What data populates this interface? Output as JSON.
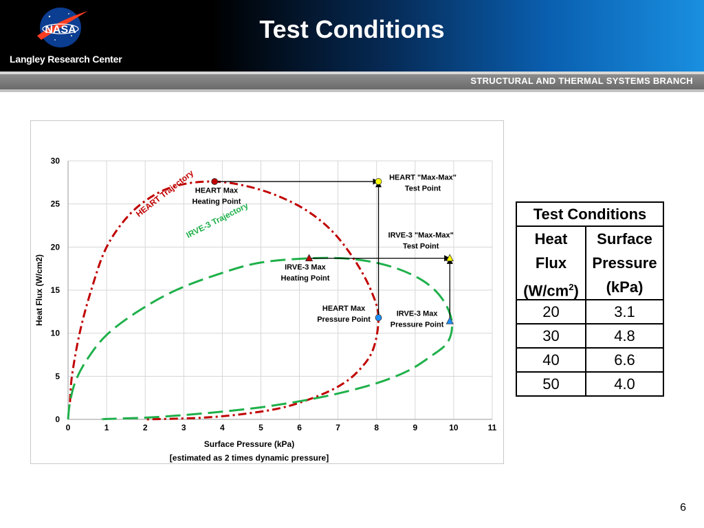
{
  "header": {
    "logo_text": "NASA",
    "center_name": "Langley Research Center",
    "title": "Test Conditions",
    "branch": "STRUCTURAL AND THERMAL SYSTEMS BRANCH"
  },
  "colors": {
    "heart": "#c00000",
    "irve": "#1eb04a",
    "banner": "#000000",
    "accent": "#1a8fe0"
  },
  "chart_data": {
    "type": "line",
    "xlabel": "Surface Pressure (kPa)",
    "xlabel2": "[estimated as 2 times dynamic pressure]",
    "ylabel": "Heat Flux (W/cm2)",
    "xlim": [
      0,
      11
    ],
    "ylim": [
      0,
      30
    ],
    "xticks": [
      0,
      1,
      2,
      3,
      4,
      5,
      6,
      7,
      8,
      9,
      10,
      11
    ],
    "yticks": [
      0,
      5,
      10,
      15,
      20,
      25,
      30
    ],
    "grid": true,
    "series": [
      {
        "name": "HEART Trajectory",
        "color": "#c00000",
        "style": "dash-dot",
        "points": [
          [
            0.05,
            2
          ],
          [
            0.1,
            5
          ],
          [
            0.3,
            10
          ],
          [
            0.6,
            15
          ],
          [
            1,
            20
          ],
          [
            1.6,
            23.8
          ],
          [
            2.3,
            26.2
          ],
          [
            3,
            27.3
          ],
          [
            3.8,
            27.6
          ],
          [
            4.6,
            27.1
          ],
          [
            5.4,
            26
          ],
          [
            6.2,
            24.2
          ],
          [
            6.9,
            21.6
          ],
          [
            7.5,
            18
          ],
          [
            7.9,
            14.5
          ],
          [
            8.05,
            11.7
          ],
          [
            7.9,
            8
          ],
          [
            7.5,
            5.5
          ],
          [
            7,
            3.8
          ],
          [
            6.3,
            2.4
          ],
          [
            5.5,
            1.3
          ],
          [
            4.5,
            0.6
          ],
          [
            3.5,
            0.2
          ],
          [
            2.5,
            0.05
          ],
          [
            2,
            0
          ]
        ]
      },
      {
        "name": "IRVE-3 Trajectory",
        "color": "#1eb04a",
        "style": "dash",
        "points": [
          [
            0,
            0
          ],
          [
            0.05,
            2
          ],
          [
            0.2,
            4.5
          ],
          [
            0.5,
            7
          ],
          [
            1,
            9.8
          ],
          [
            1.8,
            12.5
          ],
          [
            2.8,
            15
          ],
          [
            4,
            17
          ],
          [
            5,
            18.2
          ],
          [
            6.3,
            18.7
          ],
          [
            7.4,
            18.6
          ],
          [
            8.4,
            17.7
          ],
          [
            9.2,
            16.1
          ],
          [
            9.7,
            14
          ],
          [
            9.95,
            11.4
          ],
          [
            9.85,
            9
          ],
          [
            9.4,
            7.3
          ],
          [
            8.8,
            5.6
          ],
          [
            8,
            4.2
          ],
          [
            7,
            3
          ],
          [
            6,
            2.1
          ],
          [
            5,
            1.4
          ],
          [
            4,
            0.9
          ],
          [
            3,
            0.5
          ],
          [
            2,
            0.2
          ],
          [
            1,
            0.05
          ],
          [
            0.9,
            0
          ]
        ]
      }
    ],
    "markers": [
      {
        "label": "HEART  Max Heating Point",
        "x": 3.8,
        "y": 27.6,
        "shape": "circle",
        "color": "#c00000"
      },
      {
        "label": "HEART  \"Max-Max\" Test Point",
        "x": 8.05,
        "y": 27.6,
        "shape": "circle",
        "color": "#ffff00"
      },
      {
        "label": "HEART  Max Pressure Point",
        "x": 8.05,
        "y": 11.8,
        "shape": "circle",
        "color": "#1e90ff"
      },
      {
        "label": "IRVE-3  Max Heating Point",
        "x": 6.25,
        "y": 18.7,
        "shape": "triangle",
        "color": "#c00000"
      },
      {
        "label": "IRVE-3 \"Max-Max\" Test Point",
        "x": 9.9,
        "y": 18.7,
        "shape": "triangle",
        "color": "#ffff00"
      },
      {
        "label": "IRVE-3  Max Pressure Point",
        "x": 9.9,
        "y": 11.4,
        "shape": "triangle",
        "color": "#1e90ff"
      }
    ],
    "arrows": [
      {
        "from": [
          3.8,
          27.6
        ],
        "to": [
          8.05,
          27.6
        ]
      },
      {
        "from": [
          8.05,
          11.8
        ],
        "to": [
          8.05,
          27.6
        ]
      },
      {
        "from": [
          6.25,
          18.7
        ],
        "to": [
          9.9,
          18.7
        ]
      },
      {
        "from": [
          9.9,
          11.4
        ],
        "to": [
          9.9,
          18.7
        ]
      }
    ],
    "annotations": {
      "heart_traj": "HEART Trajectory",
      "irve_traj": "IRVE-3 Trajectory",
      "heart_heat_1": "HEART  Max",
      "heart_heat_2": "Heating Point",
      "heart_mm_1": "HEART  \"Max-Max\"",
      "heart_mm_2": "Test Point",
      "irve_mm_1": "IRVE-3 \"Max-Max\"",
      "irve_mm_2": "Test Point",
      "irve_heat_1": "IRVE-3  Max",
      "irve_heat_2": "Heating Point",
      "heart_press_1": "HEART  Max",
      "heart_press_2": "Pressure Point",
      "irve_press_1": "IRVE-3  Max",
      "irve_press_2": "Pressure Point"
    }
  },
  "table": {
    "title": "Test Conditions",
    "col1_header": [
      "Heat",
      "Flux",
      "(W/cm",
      "2",
      ")"
    ],
    "col2_header": [
      "Surface",
      "Pressure",
      "(kPa)"
    ],
    "rows": [
      [
        "20",
        "3.1"
      ],
      [
        "30",
        "4.8"
      ],
      [
        "40",
        "6.6"
      ],
      [
        "50",
        "4.0"
      ]
    ]
  },
  "page_number": "6"
}
